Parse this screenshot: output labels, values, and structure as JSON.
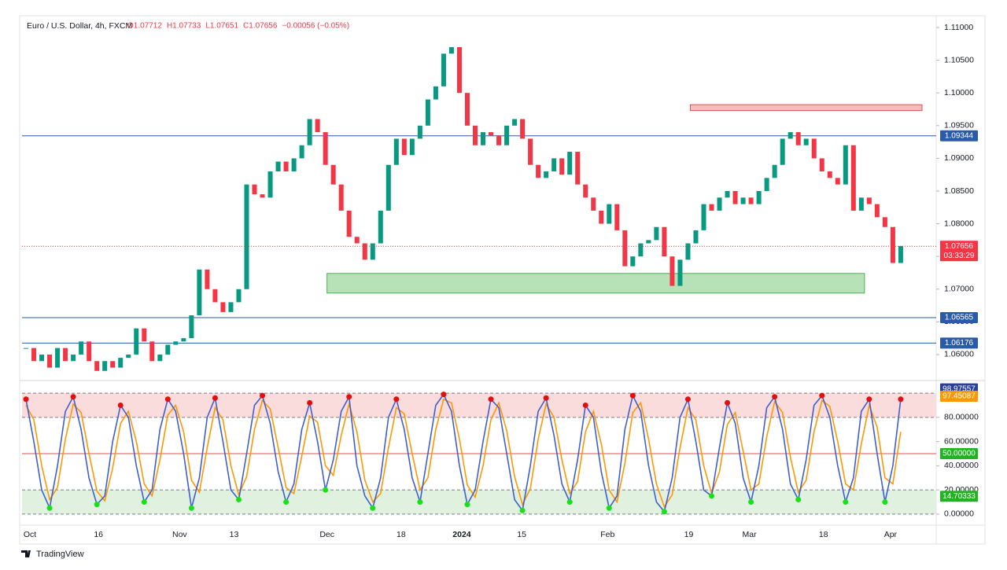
{
  "chart_data": [
    {
      "type": "candlestick",
      "title": "Euro / U.S. Dollar, 4h, FXCM",
      "legend_values": [
        "O1.07712",
        "H1.07733",
        "L1.07651",
        "C1.07656",
        "−0.00056 (−0.05%)"
      ],
      "up_color": "#089981",
      "down_color": "#f23645",
      "close": [
        1.061,
        1.059,
        1.06,
        1.058,
        1.061,
        1.059,
        1.06,
        1.062,
        1.059,
        1.0575,
        1.059,
        1.058,
        1.0595,
        1.06,
        1.064,
        1.062,
        1.059,
        1.06,
        1.0615,
        1.062,
        1.0625,
        1.066,
        1.073,
        1.07,
        1.068,
        1.0665,
        1.068,
        1.07,
        1.086,
        1.0845,
        1.084,
        1.088,
        1.0895,
        1.088,
        1.09,
        1.092,
        1.096,
        1.094,
        1.089,
        1.086,
        1.082,
        1.078,
        1.077,
        1.0745,
        1.077,
        1.082,
        1.089,
        1.093,
        1.0905,
        1.093,
        1.095,
        1.099,
        1.101,
        1.106,
        1.107,
        1.1,
        1.095,
        1.092,
        1.094,
        1.0935,
        1.092,
        1.095,
        1.096,
        1.093,
        1.089,
        1.087,
        1.088,
        1.09,
        1.0875,
        1.091,
        1.086,
        1.084,
        1.082,
        1.08,
        1.083,
        1.079,
        1.0735,
        1.075,
        1.077,
        1.0775,
        1.0795,
        1.075,
        1.0705,
        1.0745,
        1.077,
        1.079,
        1.083,
        1.082,
        1.084,
        1.085,
        1.083,
        1.084,
        1.083,
        1.085,
        1.087,
        1.089,
        1.093,
        1.094,
        1.092,
        1.093,
        1.09,
        1.088,
        1.087,
        1.086,
        1.092,
        1.082,
        1.084,
        1.083,
        1.081,
        1.0795,
        1.074,
        1.0766
      ],
      "xlim": [
        0,
        116
      ],
      "xticks": [
        {
          "value": 1,
          "label": "Oct"
        },
        {
          "value": 9.7,
          "label": "16"
        },
        {
          "value": 20,
          "label": "Nov"
        },
        {
          "value": 26.9,
          "label": "13"
        },
        {
          "value": 38.7,
          "label": "Dec"
        },
        {
          "value": 48.1,
          "label": "18"
        },
        {
          "value": 55.8,
          "label": "2024"
        },
        {
          "value": 63.4,
          "label": "15"
        },
        {
          "value": 74.3,
          "label": "Feb"
        },
        {
          "value": 84.6,
          "label": "19"
        },
        {
          "value": 92.3,
          "label": "Mar"
        },
        {
          "value": 101.7,
          "label": "18"
        },
        {
          "value": 110.2,
          "label": "Apr"
        }
      ],
      "ylim": [
        1.05627,
        1.1112
      ],
      "yticks": [
        {
          "value": 1.11,
          "label": "1.11000"
        },
        {
          "value": 1.105,
          "label": "1.10500"
        },
        {
          "value": 1.1,
          "label": "1.10000"
        },
        {
          "value": 1.095,
          "label": "1.09500"
        },
        {
          "value": 1.09,
          "label": "1.09000"
        },
        {
          "value": 1.085,
          "label": "1.08500"
        },
        {
          "value": 1.08,
          "label": "1.08000"
        },
        {
          "value": 1.075,
          "label": "1.07500"
        },
        {
          "value": 1.07,
          "label": "1.07000"
        },
        {
          "value": 1.065,
          "label": "1.06500"
        },
        {
          "value": 1.06,
          "label": "1.06000"
        }
      ],
      "hlines": [
        {
          "value": 1.09344,
          "label": "1.09344",
          "color": "#2a5aa8"
        },
        {
          "value": 1.06565,
          "label": "1.06565",
          "color": "#2a5aa8"
        },
        {
          "value": 1.06176,
          "label": "1.06176",
          "color": "#2a5aa8"
        }
      ],
      "price_line": {
        "value": 1.07656,
        "label": "1.07656",
        "countdown": "03:33:29",
        "color": "#f23645"
      },
      "zones": [
        {
          "x": [
            84.8,
            114.2
          ],
          "y": [
            1.0973,
            1.0982
          ],
          "color": "#f4a6a6",
          "border": "#d9534f"
        },
        {
          "x": [
            38.7,
            106.9
          ],
          "y": [
            1.0694,
            1.0724
          ],
          "color": "#9fd89f",
          "border": "#4caf50"
        }
      ]
    },
    {
      "type": "line",
      "series": [
        {
          "name": "%K",
          "color": "#3f5fd0",
          "values": [
            95,
            60,
            20,
            5,
            40,
            85,
            97,
            70,
            30,
            8,
            15,
            60,
            90,
            80,
            40,
            10,
            20,
            70,
            95,
            85,
            50,
            5,
            30,
            80,
            96,
            60,
            20,
            12,
            50,
            90,
            98,
            75,
            35,
            10,
            25,
            70,
            92,
            60,
            20,
            45,
            85,
            97,
            40,
            15,
            5,
            30,
            80,
            95,
            70,
            30,
            10,
            50,
            90,
            99,
            85,
            40,
            8,
            20,
            60,
            95,
            88,
            50,
            12,
            3,
            40,
            85,
            96,
            65,
            25,
            10,
            45,
            90,
            80,
            35,
            5,
            15,
            70,
            98,
            85,
            40,
            10,
            2,
            30,
            80,
            95,
            60,
            20,
            15,
            55,
            92,
            75,
            30,
            10,
            40,
            88,
            97,
            70,
            25,
            12,
            45,
            90,
            98,
            80,
            40,
            10,
            30,
            85,
            95,
            50,
            10,
            40,
            95
          ]
        },
        {
          "name": "%D",
          "color": "#ff9800",
          "values": [
            90,
            78,
            40,
            12,
            22,
            62,
            91,
            84,
            50,
            19,
            11,
            38,
            75,
            85,
            60,
            25,
            15,
            45,
            82,
            90,
            68,
            28,
            18,
            55,
            88,
            78,
            40,
            16,
            31,
            70,
            94,
            87,
            55,
            22,
            17,
            48,
            81,
            76,
            40,
            32,
            65,
            91,
            68,
            28,
            10,
            17,
            55,
            88,
            83,
            50,
            20,
            30,
            70,
            95,
            92,
            62,
            24,
            14,
            40,
            78,
            92,
            69,
            31,
            8,
            21,
            62,
            91,
            80,
            45,
            17,
            27,
            68,
            85,
            58,
            20,
            10,
            42,
            84,
            92,
            62,
            25,
            6,
            16,
            55,
            88,
            78,
            40,
            17,
            35,
            74,
            84,
            52,
            20,
            25,
            64,
            93,
            84,
            47,
            18,
            28,
            68,
            94,
            89,
            60,
            25,
            20,
            58,
            90,
            72,
            30,
            25,
            68
          ]
        }
      ],
      "xlim": [
        0,
        116
      ],
      "ylim": [
        -7.2,
        108.5
      ],
      "yticks": [
        {
          "value": 80,
          "label": "80.00000"
        },
        {
          "value": 60,
          "label": "60.00000"
        },
        {
          "value": 40,
          "label": "40.00000"
        },
        {
          "value": 20,
          "label": "20.00000"
        },
        {
          "value": 0,
          "label": "0.00000"
        }
      ],
      "dashed_levels": [
        100,
        80,
        20,
        0
      ],
      "bands": [
        {
          "from": 80,
          "to": 100,
          "color": "#fbdcdc"
        },
        {
          "from": 0,
          "to": 20,
          "color": "#e0f1e0"
        }
      ],
      "midline": {
        "value": 50,
        "color": "#e05050"
      },
      "badges": [
        {
          "value": 98.97557,
          "label": "98.97557",
          "color": "#2a3f9a"
        },
        {
          "value": 97.45087,
          "label": "97.45087",
          "color": "#ff9800"
        },
        {
          "value": 50,
          "label": "50.00000",
          "color": "#22b322"
        },
        {
          "value": 14.70333,
          "label": "14.70333",
          "color": "#22b322"
        }
      ],
      "peak_color": "#e01010",
      "trough_color": "#19e019"
    }
  ],
  "footer": "TradingView"
}
